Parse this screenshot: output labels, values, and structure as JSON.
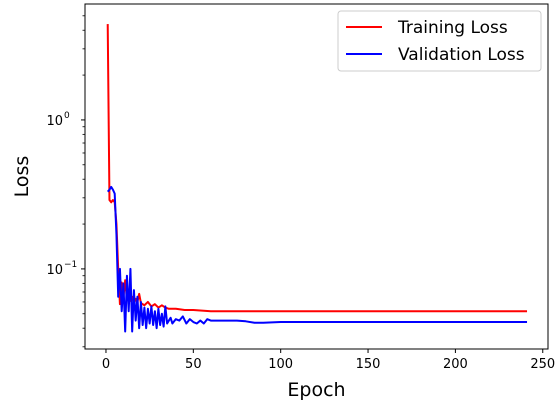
{
  "chart_data": {
    "type": "line",
    "xlabel": "Epoch",
    "ylabel": "Loss",
    "yscale": "log",
    "xlim": [
      -12,
      253
    ],
    "ylim": [
      0.029,
      6.0
    ],
    "x_ticks": [
      0,
      50,
      100,
      150,
      200,
      250
    ],
    "y_ticks": [
      {
        "value": 1,
        "base": "10",
        "exp": "0"
      },
      {
        "value": 0.1,
        "base": "10",
        "exp": "−1"
      }
    ],
    "grid": false,
    "legend": "top-right",
    "series": [
      {
        "name": "Training Loss",
        "color": "#ff0000",
        "points": [
          [
            1,
            4.4
          ],
          [
            2,
            0.29
          ],
          [
            3,
            0.28
          ],
          [
            4,
            0.29
          ],
          [
            5,
            0.28
          ],
          [
            6,
            0.2
          ],
          [
            7,
            0.1
          ],
          [
            8,
            0.058
          ],
          [
            9,
            0.081
          ],
          [
            10,
            0.065
          ],
          [
            11,
            0.084
          ],
          [
            12,
            0.062
          ],
          [
            13,
            0.07
          ],
          [
            14,
            0.061
          ],
          [
            15,
            0.065
          ],
          [
            16,
            0.058
          ],
          [
            17,
            0.063
          ],
          [
            18,
            0.06
          ],
          [
            19,
            0.068
          ],
          [
            20,
            0.059
          ],
          [
            22,
            0.057
          ],
          [
            24,
            0.06
          ],
          [
            26,
            0.056
          ],
          [
            28,
            0.058
          ],
          [
            30,
            0.055
          ],
          [
            32,
            0.057
          ],
          [
            34,
            0.055
          ],
          [
            36,
            0.054
          ],
          [
            40,
            0.054
          ],
          [
            45,
            0.053
          ],
          [
            50,
            0.053
          ],
          [
            55,
            0.0525
          ],
          [
            60,
            0.052
          ],
          [
            70,
            0.052
          ],
          [
            80,
            0.052
          ],
          [
            100,
            0.052
          ],
          [
            150,
            0.052
          ],
          [
            200,
            0.052
          ],
          [
            241,
            0.052
          ]
        ]
      },
      {
        "name": "Validation Loss",
        "color": "#0000ff",
        "points": [
          [
            1,
            0.33
          ],
          [
            2,
            0.34
          ],
          [
            3,
            0.355
          ],
          [
            4,
            0.34
          ],
          [
            5,
            0.32
          ],
          [
            6,
            0.17
          ],
          [
            7,
            0.065
          ],
          [
            8,
            0.1
          ],
          [
            9,
            0.052
          ],
          [
            10,
            0.08
          ],
          [
            11,
            0.038
          ],
          [
            12,
            0.09
          ],
          [
            13,
            0.052
          ],
          [
            14,
            0.1
          ],
          [
            15,
            0.038
          ],
          [
            16,
            0.072
          ],
          [
            17,
            0.045
          ],
          [
            18,
            0.065
          ],
          [
            19,
            0.04
          ],
          [
            20,
            0.06
          ],
          [
            21,
            0.042
          ],
          [
            22,
            0.055
          ],
          [
            23,
            0.04
          ],
          [
            24,
            0.054
          ],
          [
            25,
            0.043
          ],
          [
            26,
            0.056
          ],
          [
            27,
            0.042
          ],
          [
            28,
            0.052
          ],
          [
            29,
            0.04
          ],
          [
            30,
            0.054
          ],
          [
            31,
            0.042
          ],
          [
            32,
            0.05
          ],
          [
            33,
            0.041
          ],
          [
            34,
            0.056
          ],
          [
            35,
            0.043
          ],
          [
            36,
            0.045
          ],
          [
            37,
            0.047
          ],
          [
            38,
            0.043
          ],
          [
            40,
            0.046
          ],
          [
            42,
            0.045
          ],
          [
            44,
            0.048
          ],
          [
            46,
            0.043
          ],
          [
            48,
            0.046
          ],
          [
            50,
            0.044
          ],
          [
            52,
            0.043
          ],
          [
            54,
            0.045
          ],
          [
            56,
            0.043
          ],
          [
            58,
            0.046
          ],
          [
            60,
            0.045
          ],
          [
            65,
            0.045
          ],
          [
            70,
            0.045
          ],
          [
            75,
            0.045
          ],
          [
            80,
            0.0445
          ],
          [
            85,
            0.0435
          ],
          [
            90,
            0.0435
          ],
          [
            100,
            0.044
          ],
          [
            150,
            0.044
          ],
          [
            200,
            0.044
          ],
          [
            241,
            0.044
          ]
        ]
      }
    ]
  }
}
